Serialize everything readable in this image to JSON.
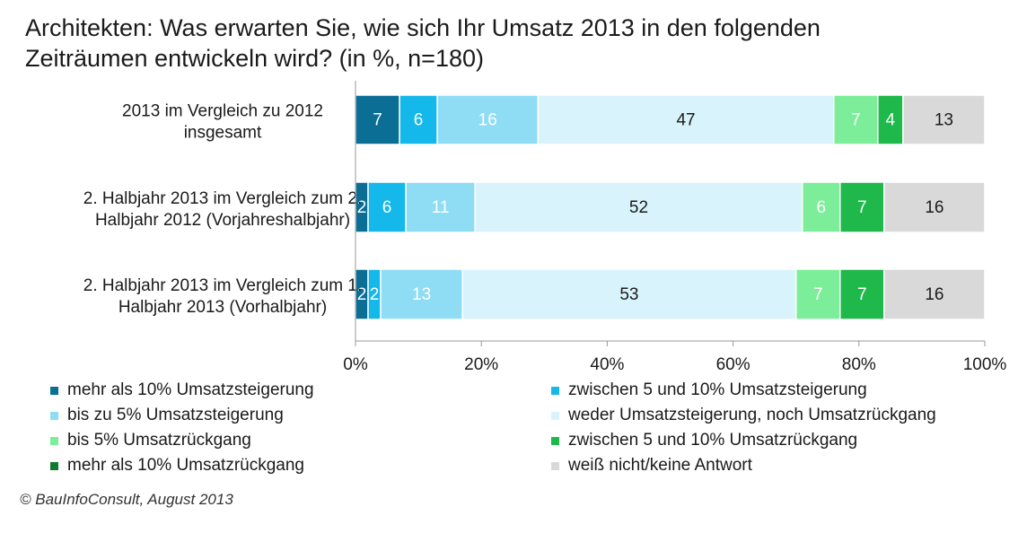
{
  "title": "Architekten: Was erwarten Sie, wie  sich Ihr Umsatz 2013 in den folgenden\nZeiträumen entwickeln wird? (in %, n=180)",
  "copyright": "© BauInfoConsult, August 2013",
  "chart_data": {
    "type": "bar",
    "orientation": "horizontal",
    "stacked": "percent",
    "title": "Architekten: Was erwarten Sie, wie  sich Ihr Umsatz 2013 in den folgenden Zeiträumen entwickeln wird? (in %, n=180)",
    "categories": [
      [
        "2013 im Vergleich zu 2012",
        "insgesamt"
      ],
      [
        "2. Halbjahr 2013 im Vergleich zum 2.",
        "Halbjahr 2012 (Vorjahreshalbjahr)"
      ],
      [
        "2. Halbjahr 2013 im Vergleich zum 1.",
        "Halbjahr 2013 (Vorhalbjahr)"
      ]
    ],
    "xlim": [
      0,
      100
    ],
    "xticks": [
      "0%",
      "20%",
      "40%",
      "60%",
      "80%",
      "100%"
    ],
    "grid": false,
    "legend_position": "bottom",
    "series": [
      {
        "name": "mehr als 10% Umsatzsteigerung",
        "color": "#0b6e94",
        "values": [
          7,
          2,
          2
        ]
      },
      {
        "name": "zwischen 5 und 10% Umsatzsteigerung",
        "color": "#14b8ea",
        "values": [
          6,
          6,
          2
        ]
      },
      {
        "name": "bis zu 5% Umsatzsteigerung",
        "color": "#8fdcf5",
        "values": [
          16,
          11,
          13
        ]
      },
      {
        "name": "weder Umsatzsteigerung, noch Umsatzrückgang",
        "color": "#d8f3fb",
        "values": [
          47,
          52,
          53
        ]
      },
      {
        "name": "bis 5% Umsatzrückgang",
        "color": "#7cee9a",
        "values": [
          7,
          6,
          7
        ]
      },
      {
        "name": "zwischen 5 und 10% Umsatzrückgang",
        "color": "#1fb84a",
        "values": [
          4,
          7,
          7
        ]
      },
      {
        "name": "mehr als 10% Umsatzrückgang",
        "color": "#0d7a2e",
        "values": [
          null,
          null,
          null
        ]
      },
      {
        "name": "weiß nicht/keine Antwort",
        "color": "#d9d9d9",
        "values": [
          13,
          16,
          16
        ]
      }
    ],
    "legend_order": [
      0,
      1,
      2,
      3,
      4,
      5,
      6,
      7
    ]
  }
}
